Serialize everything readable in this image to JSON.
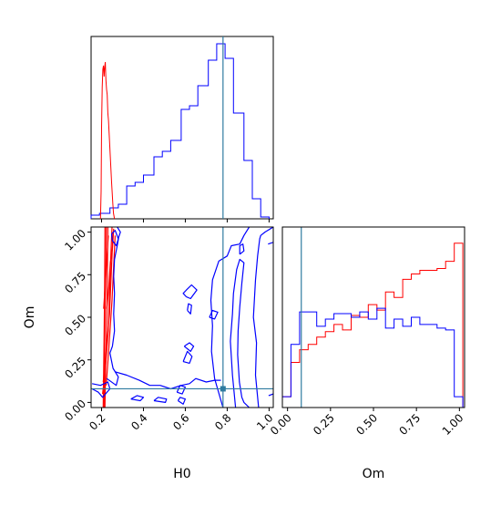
{
  "chart_data": {
    "type": "corner",
    "truth_color": "#2f7ba0",
    "truth": {
      "H0": 0.78,
      "Om": 0.08
    },
    "axes": {
      "H0": {
        "label": "H0",
        "range": [
          0.15,
          1.02
        ],
        "ticks": [
          0.2,
          0.4,
          0.6,
          0.8,
          1.0
        ],
        "tick_labels": [
          "0.2",
          "0.4",
          "0.6",
          "0.8",
          "1.0"
        ]
      },
      "Om": {
        "label": "Om",
        "range": [
          -0.03,
          1.03
        ],
        "ticks": [
          0.0,
          0.25,
          0.5,
          0.75,
          1.0
        ],
        "tick_labels": [
          "0.00",
          "0.25",
          "0.50",
          "0.75",
          "1.00"
        ]
      }
    },
    "series": [
      {
        "color": "#ff0000"
      },
      {
        "color": "#0000ff"
      }
    ],
    "hist_H0": {
      "blue": {
        "edges": [
          0.15,
          0.19,
          0.24,
          0.28,
          0.32,
          0.36,
          0.4,
          0.45,
          0.49,
          0.53,
          0.58,
          0.62,
          0.66,
          0.71,
          0.75,
          0.79,
          0.83,
          0.88,
          0.92,
          0.96,
          1.0
        ],
        "values": [
          0.02,
          0.03,
          0.06,
          0.08,
          0.18,
          0.2,
          0.24,
          0.34,
          0.37,
          0.43,
          0.6,
          0.62,
          0.73,
          0.87,
          0.96,
          0.88,
          0.58,
          0.32,
          0.11,
          0.01
        ]
      },
      "red": {
        "x": [
          0.195,
          0.198,
          0.2,
          0.203,
          0.206,
          0.209,
          0.212,
          0.215,
          0.218,
          0.221,
          0.224,
          0.227,
          0.23,
          0.233,
          0.236,
          0.239,
          0.242,
          0.245,
          0.248,
          0.251,
          0.254,
          0.257,
          0.262
        ],
        "values": [
          0.0,
          0.15,
          0.5,
          0.72,
          0.82,
          0.84,
          0.78,
          0.83,
          0.86,
          0.76,
          0.71,
          0.68,
          0.58,
          0.54,
          0.47,
          0.4,
          0.34,
          0.27,
          0.2,
          0.14,
          0.08,
          0.03,
          0.0
        ]
      }
    },
    "hist_Om": {
      "edges": [
        -0.03,
        0.02,
        0.07,
        0.12,
        0.17,
        0.22,
        0.27,
        0.32,
        0.37,
        0.42,
        0.47,
        0.52,
        0.57,
        0.62,
        0.67,
        0.72,
        0.77,
        0.82,
        0.87,
        0.92,
        0.97,
        1.02
      ],
      "red": [
        0.06,
        0.25,
        0.32,
        0.35,
        0.39,
        0.42,
        0.46,
        0.43,
        0.51,
        0.5,
        0.57,
        0.54,
        0.64,
        0.61,
        0.71,
        0.74,
        0.76,
        0.76,
        0.77,
        0.81,
        0.91
      ],
      "blue": [
        0.06,
        0.35,
        0.53,
        0.53,
        0.45,
        0.49,
        0.52,
        0.52,
        0.5,
        0.53,
        0.49,
        0.55,
        0.44,
        0.49,
        0.45,
        0.5,
        0.46,
        0.46,
        0.44,
        0.43,
        0.06
      ]
    },
    "contours": [
      {
        "color": "#ff0000",
        "points": [
          [
            0.208,
            -0.03
          ],
          [
            0.212,
            0.4
          ],
          [
            0.215,
            0.7
          ],
          [
            0.216,
            1.03
          ]
        ]
      },
      {
        "color": "#ff0000",
        "points": [
          [
            0.212,
            -0.03
          ],
          [
            0.215,
            0.35
          ],
          [
            0.22,
            0.75
          ],
          [
            0.222,
            1.03
          ]
        ]
      },
      {
        "color": "#ff0000",
        "points": [
          [
            0.216,
            -0.03
          ],
          [
            0.22,
            0.25
          ],
          [
            0.226,
            0.55
          ],
          [
            0.23,
            1.03
          ]
        ]
      },
      {
        "color": "#ff0000",
        "points": [
          [
            0.205,
            0.05
          ],
          [
            0.215,
            0.15
          ],
          [
            0.232,
            0.42
          ],
          [
            0.24,
            0.72
          ],
          [
            0.246,
            0.92
          ],
          [
            0.25,
            1.03
          ]
        ]
      },
      {
        "color": "#ff0000",
        "points": [
          [
            0.208,
            0.12
          ],
          [
            0.222,
            0.3
          ],
          [
            0.238,
            0.52
          ],
          [
            0.248,
            0.8
          ],
          [
            0.255,
            1.0
          ]
        ]
      },
      {
        "color": "#ff0000",
        "points": [
          [
            0.222,
            0.1
          ],
          [
            0.235,
            0.32
          ],
          [
            0.25,
            0.6
          ],
          [
            0.265,
            0.98
          ]
        ]
      },
      {
        "color": "#ff0000",
        "points": [
          [
            0.21,
            0.55
          ],
          [
            0.218,
            0.7
          ],
          [
            0.226,
            0.86
          ],
          [
            0.232,
            0.98
          ]
        ]
      },
      {
        "color": "#ff0000",
        "points": [
          [
            0.225,
            0.55
          ],
          [
            0.235,
            0.68
          ],
          [
            0.242,
            0.82
          ],
          [
            0.252,
            0.9
          ],
          [
            0.258,
            1.02
          ]
        ]
      },
      {
        "color": "#0000ff",
        "points": [
          [
            0.155,
            0.08
          ],
          [
            0.185,
            0.06
          ],
          [
            0.205,
            0.03
          ],
          [
            0.24,
            0.08
          ],
          [
            0.23,
            0.12
          ],
          [
            0.195,
            0.1
          ],
          [
            0.155,
            0.11
          ]
        ]
      },
      {
        "color": "#0000ff",
        "points": [
          [
            0.225,
            0.14
          ],
          [
            0.27,
            0.1
          ],
          [
            0.28,
            0.15
          ],
          [
            0.255,
            0.2
          ],
          [
            0.24,
            0.29
          ],
          [
            0.252,
            0.33
          ],
          [
            0.262,
            0.42
          ],
          [
            0.258,
            0.52
          ],
          [
            0.262,
            0.64
          ],
          [
            0.258,
            0.74
          ],
          [
            0.262,
            0.84
          ],
          [
            0.275,
            0.92
          ],
          [
            0.282,
            0.97
          ],
          [
            0.29,
            1.0
          ],
          [
            0.275,
            1.03
          ]
        ]
      },
      {
        "color": "#0000ff",
        "points": [
          [
            0.248,
            0.99
          ],
          [
            0.265,
            1.01
          ],
          [
            0.28,
            0.96
          ],
          [
            0.27,
            0.92
          ],
          [
            0.252,
            0.95
          ],
          [
            0.248,
            0.99
          ]
        ]
      },
      {
        "color": "#0000ff",
        "points": [
          [
            0.265,
            0.18
          ],
          [
            0.32,
            0.16
          ],
          [
            0.38,
            0.13
          ],
          [
            0.43,
            0.1
          ],
          [
            0.48,
            0.1
          ],
          [
            0.53,
            0.08
          ],
          [
            0.58,
            0.1
          ],
          [
            0.62,
            0.11
          ],
          [
            0.65,
            0.14
          ],
          [
            0.7,
            0.12
          ],
          [
            0.74,
            0.13
          ],
          [
            0.77,
            0.13
          ]
        ]
      },
      {
        "color": "#0000ff",
        "points": [
          [
            0.34,
            0.02
          ],
          [
            0.385,
            0.01
          ],
          [
            0.4,
            0.03
          ],
          [
            0.37,
            0.04
          ],
          [
            0.34,
            0.02
          ]
        ]
      },
      {
        "color": "#0000ff",
        "points": [
          [
            0.45,
            0.01
          ],
          [
            0.505,
            0.0
          ],
          [
            0.51,
            0.02
          ],
          [
            0.47,
            0.03
          ],
          [
            0.45,
            0.01
          ]
        ]
      },
      {
        "color": "#0000ff",
        "points": [
          [
            0.565,
            0.01
          ],
          [
            0.59,
            -0.01
          ],
          [
            0.6,
            0.02
          ],
          [
            0.575,
            0.03
          ],
          [
            0.565,
            0.01
          ]
        ]
      },
      {
        "color": "#0000ff",
        "points": [
          [
            0.56,
            0.06
          ],
          [
            0.585,
            0.05
          ],
          [
            0.6,
            0.09
          ],
          [
            0.575,
            0.1
          ],
          [
            0.56,
            0.06
          ]
        ]
      },
      {
        "color": "#0000ff",
        "points": [
          [
            0.595,
            0.33
          ],
          [
            0.625,
            0.3
          ],
          [
            0.64,
            0.33
          ],
          [
            0.62,
            0.35
          ],
          [
            0.595,
            0.33
          ]
        ]
      },
      {
        "color": "#0000ff",
        "points": [
          [
            0.59,
            0.24
          ],
          [
            0.62,
            0.23
          ],
          [
            0.632,
            0.27
          ],
          [
            0.61,
            0.3
          ],
          [
            0.59,
            0.24
          ]
        ]
      },
      {
        "color": "#0000ff",
        "points": [
          [
            0.605,
            0.62
          ],
          [
            0.625,
            0.61
          ],
          [
            0.655,
            0.66
          ],
          [
            0.63,
            0.69
          ],
          [
            0.605,
            0.66
          ],
          [
            0.59,
            0.64
          ],
          [
            0.605,
            0.62
          ]
        ]
      },
      {
        "color": "#0000ff",
        "points": [
          [
            0.61,
            0.54
          ],
          [
            0.625,
            0.52
          ],
          [
            0.63,
            0.57
          ],
          [
            0.615,
            0.58
          ],
          [
            0.61,
            0.54
          ]
        ]
      },
      {
        "color": "#0000ff",
        "points": [
          [
            0.715,
            0.5
          ],
          [
            0.74,
            0.49
          ],
          [
            0.755,
            0.53
          ],
          [
            0.73,
            0.54
          ],
          [
            0.715,
            0.5
          ]
        ]
      },
      {
        "color": "#0000ff",
        "points": [
          [
            0.78,
            -0.03
          ],
          [
            0.74,
            0.14
          ],
          [
            0.725,
            0.3
          ],
          [
            0.73,
            0.45
          ],
          [
            0.722,
            0.6
          ],
          [
            0.73,
            0.72
          ],
          [
            0.76,
            0.83
          ],
          [
            0.8,
            0.86
          ],
          [
            0.82,
            0.92
          ],
          [
            0.86,
            0.93
          ],
          [
            0.88,
            0.98
          ],
          [
            0.905,
            1.03
          ]
        ]
      },
      {
        "color": "#0000ff",
        "points": [
          [
            0.86,
            0.87
          ],
          [
            0.88,
            0.89
          ],
          [
            0.875,
            0.93
          ],
          [
            0.86,
            0.92
          ],
          [
            0.86,
            0.87
          ]
        ]
      },
      {
        "color": "#0000ff",
        "points": [
          [
            0.84,
            -0.03
          ],
          [
            0.825,
            0.16
          ],
          [
            0.815,
            0.36
          ],
          [
            0.825,
            0.52
          ],
          [
            0.83,
            0.64
          ],
          [
            0.845,
            0.78
          ],
          [
            0.86,
            0.84
          ],
          [
            0.88,
            0.82
          ],
          [
            0.87,
            0.7
          ],
          [
            0.86,
            0.56
          ],
          [
            0.852,
            0.42
          ],
          [
            0.85,
            0.28
          ],
          [
            0.858,
            0.12
          ],
          [
            0.87,
            0.03
          ],
          [
            0.88,
            0.0
          ],
          [
            0.905,
            -0.03
          ]
        ]
      },
      {
        "color": "#0000ff",
        "points": [
          [
            0.95,
            -0.03
          ],
          [
            0.935,
            0.16
          ],
          [
            0.94,
            0.35
          ],
          [
            0.925,
            0.5
          ],
          [
            0.935,
            0.72
          ],
          [
            0.945,
            0.86
          ],
          [
            0.955,
            0.96
          ],
          [
            0.96,
            0.98
          ],
          [
            0.98,
            1.0
          ],
          [
            1.02,
            1.03
          ]
        ]
      },
      {
        "color": "#0000ff",
        "points": [
          [
            0.995,
            0.93
          ],
          [
            1.02,
            0.94
          ]
        ]
      },
      {
        "color": "#0000ff",
        "points": [
          [
            0.998,
            0.04
          ],
          [
            1.02,
            0.05
          ]
        ]
      }
    ]
  }
}
